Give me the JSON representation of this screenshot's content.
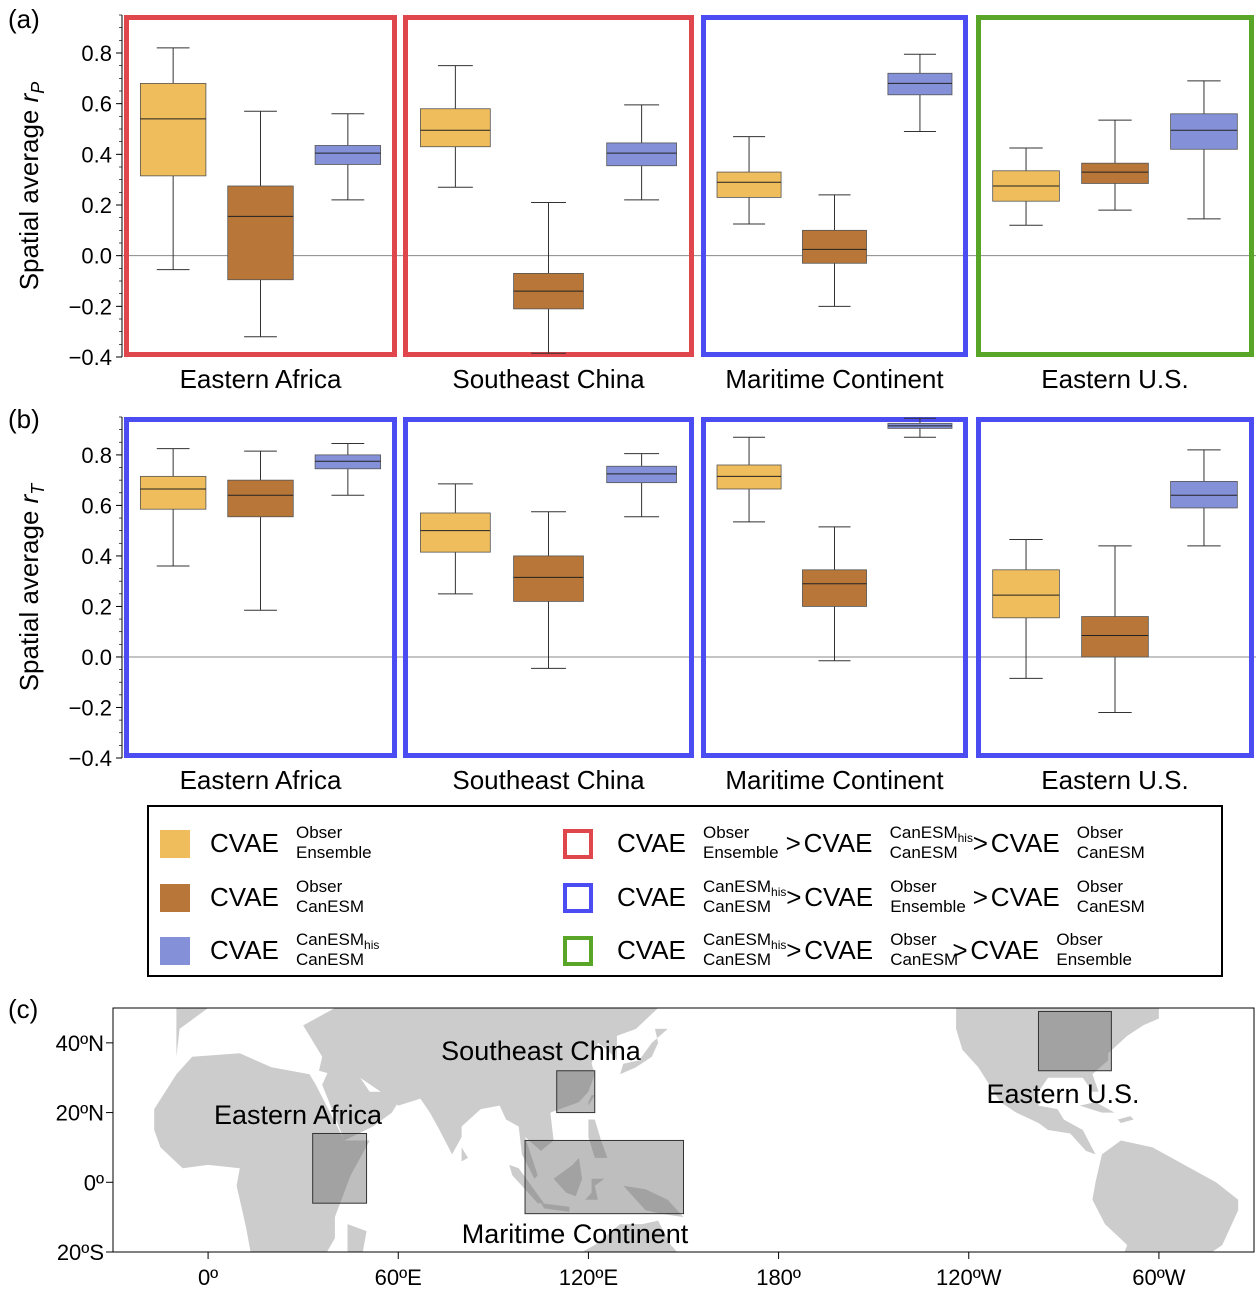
{
  "colors": {
    "ensemble": "#efbd5b",
    "canesm": "#b87738",
    "canesm_his": "#8491d8",
    "order_red": "#e0474c",
    "order_blue": "#4b4cf2",
    "order_green": "#58a528",
    "land": "#cccccc",
    "box_region": "#8a8a8a"
  },
  "legend": {
    "series": [
      {
        "main": "CVAE",
        "sup": "Obser",
        "sub": "Ensemble",
        "color_key": "ensemble"
      },
      {
        "main": "CVAE",
        "sup": "Obser",
        "sub": "CanESM",
        "color_key": "canesm"
      },
      {
        "main": "CVAE",
        "sup": "CanESM",
        "sup_sub": "his",
        "sub": "CanESM",
        "color_key": "canesm_his"
      }
    ],
    "orders": [
      {
        "color_key": "order_red",
        "terms": [
          {
            "main": "CVAE",
            "sup": "Obser",
            "sub": "Ensemble"
          },
          {
            "main": "CVAE",
            "sup": "CanESM",
            "sup_sub": "his",
            "sub": "CanESM"
          },
          {
            "main": "CVAE",
            "sup": "Obser",
            "sub": "CanESM"
          }
        ]
      },
      {
        "color_key": "order_blue",
        "terms": [
          {
            "main": "CVAE",
            "sup": "CanESM",
            "sup_sub": "his",
            "sub": "CanESM"
          },
          {
            "main": "CVAE",
            "sup": "Obser",
            "sub": "Ensemble"
          },
          {
            "main": "CVAE",
            "sup": "Obser",
            "sub": "CanESM"
          }
        ]
      },
      {
        "color_key": "order_green",
        "terms": [
          {
            "main": "CVAE",
            "sup": "CanESM",
            "sup_sub": "his",
            "sub": "CanESM"
          },
          {
            "main": "CVAE",
            "sup": "Obser",
            "sub": "CanESM"
          },
          {
            "main": "CVAE",
            "sup": "Obser",
            "sub": "Ensemble"
          }
        ]
      }
    ],
    "gt": ">"
  },
  "chart_data": [
    {
      "type": "box",
      "panel": "(a)",
      "ylabel": "Spatial average",
      "ylabel_var": "r",
      "ylabel_sub": "P",
      "ylim": [
        -0.4,
        0.95
      ],
      "yticks": [
        -0.4,
        -0.2,
        0.0,
        0.2,
        0.4,
        0.6,
        0.8
      ],
      "ytick_labels": [
        "−0.4",
        "−0.2",
        "0.0",
        "0.2",
        "0.4",
        "0.6",
        "0.8"
      ],
      "zero_line": true,
      "regions": [
        {
          "name": "Eastern Africa",
          "order": "order_red",
          "boxes": [
            {
              "series": "ensemble",
              "min": -0.055,
              "q1": 0.315,
              "median": 0.54,
              "q3": 0.68,
              "max": 0.82
            },
            {
              "series": "canesm",
              "min": -0.32,
              "q1": -0.095,
              "median": 0.155,
              "q3": 0.275,
              "max": 0.57
            },
            {
              "series": "canesm_his",
              "min": 0.22,
              "q1": 0.36,
              "median": 0.405,
              "q3": 0.435,
              "max": 0.56
            }
          ]
        },
        {
          "name": "Southeast China",
          "order": "order_red",
          "boxes": [
            {
              "series": "ensemble",
              "min": 0.27,
              "q1": 0.43,
              "median": 0.495,
              "q3": 0.58,
              "max": 0.75
            },
            {
              "series": "canesm",
              "min": -0.385,
              "q1": -0.21,
              "median": -0.14,
              "q3": -0.07,
              "max": 0.21
            },
            {
              "series": "canesm_his",
              "min": 0.22,
              "q1": 0.355,
              "median": 0.405,
              "q3": 0.445,
              "max": 0.595
            }
          ]
        },
        {
          "name": "Maritime Continent",
          "order": "order_blue",
          "boxes": [
            {
              "series": "ensemble",
              "min": 0.125,
              "q1": 0.23,
              "median": 0.29,
              "q3": 0.33,
              "max": 0.47
            },
            {
              "series": "canesm",
              "min": -0.2,
              "q1": -0.03,
              "median": 0.025,
              "q3": 0.1,
              "max": 0.24
            },
            {
              "series": "canesm_his",
              "min": 0.49,
              "q1": 0.635,
              "median": 0.68,
              "q3": 0.72,
              "max": 0.795
            }
          ]
        },
        {
          "name": "Eastern U.S.",
          "order": "order_green",
          "boxes": [
            {
              "series": "ensemble",
              "min": 0.12,
              "q1": 0.215,
              "median": 0.275,
              "q3": 0.335,
              "max": 0.425
            },
            {
              "series": "canesm",
              "min": 0.18,
              "q1": 0.285,
              "median": 0.33,
              "q3": 0.365,
              "max": 0.535
            },
            {
              "series": "canesm_his",
              "min": 0.145,
              "q1": 0.42,
              "median": 0.495,
              "q3": 0.56,
              "max": 0.69
            }
          ]
        }
      ]
    },
    {
      "type": "box",
      "panel": "(b)",
      "ylabel": "Spatial average",
      "ylabel_var": "r",
      "ylabel_sub": "T",
      "ylim": [
        -0.4,
        0.95
      ],
      "yticks": [
        -0.4,
        -0.2,
        0.0,
        0.2,
        0.4,
        0.6,
        0.8
      ],
      "ytick_labels": [
        "−0.4",
        "−0.2",
        "0.0",
        "0.2",
        "0.4",
        "0.6",
        "0.8"
      ],
      "zero_line": true,
      "regions": [
        {
          "name": "Eastern Africa",
          "order": "order_blue",
          "boxes": [
            {
              "series": "ensemble",
              "min": 0.36,
              "q1": 0.585,
              "median": 0.665,
              "q3": 0.715,
              "max": 0.825
            },
            {
              "series": "canesm",
              "min": 0.185,
              "q1": 0.555,
              "median": 0.64,
              "q3": 0.7,
              "max": 0.815
            },
            {
              "series": "canesm_his",
              "min": 0.64,
              "q1": 0.745,
              "median": 0.775,
              "q3": 0.8,
              "max": 0.845
            }
          ]
        },
        {
          "name": "Southeast China",
          "order": "order_blue",
          "boxes": [
            {
              "series": "ensemble",
              "min": 0.25,
              "q1": 0.415,
              "median": 0.5,
              "q3": 0.57,
              "max": 0.685
            },
            {
              "series": "canesm",
              "min": -0.045,
              "q1": 0.22,
              "median": 0.315,
              "q3": 0.4,
              "max": 0.575
            },
            {
              "series": "canesm_his",
              "min": 0.555,
              "q1": 0.69,
              "median": 0.725,
              "q3": 0.755,
              "max": 0.805
            }
          ]
        },
        {
          "name": "Maritime Continent",
          "order": "order_blue",
          "boxes": [
            {
              "series": "ensemble",
              "min": 0.535,
              "q1": 0.665,
              "median": 0.715,
              "q3": 0.76,
              "max": 0.87
            },
            {
              "series": "canesm",
              "min": -0.015,
              "q1": 0.2,
              "median": 0.29,
              "q3": 0.345,
              "max": 0.515
            },
            {
              "series": "canesm_his",
              "min": 0.87,
              "q1": 0.905,
              "median": 0.915,
              "q3": 0.925,
              "max": 0.945
            }
          ]
        },
        {
          "name": "Eastern U.S.",
          "order": "order_blue",
          "boxes": [
            {
              "series": "ensemble",
              "min": -0.085,
              "q1": 0.155,
              "median": 0.245,
              "q3": 0.345,
              "max": 0.465
            },
            {
              "series": "canesm",
              "min": -0.22,
              "q1": 0.0,
              "median": 0.085,
              "q3": 0.16,
              "max": 0.44
            },
            {
              "series": "canesm_his",
              "min": 0.44,
              "q1": 0.59,
              "median": 0.64,
              "q3": 0.695,
              "max": 0.82
            }
          ]
        }
      ]
    }
  ],
  "map": {
    "panel": "(c)",
    "xticks": [
      0,
      60,
      120,
      180,
      240,
      300
    ],
    "xtick_labels": [
      "0º",
      "60ºE",
      "120ºE",
      "180º",
      "120ºW",
      "60ºW"
    ],
    "yticks": [
      40,
      20,
      0,
      -20
    ],
    "ytick_labels": [
      "40ºN",
      "20ºN",
      "0º",
      "20ºS"
    ],
    "xlim": [
      -30,
      330
    ],
    "ylim": [
      -20,
      50
    ],
    "regions": [
      {
        "name": "Southeast China",
        "lon": [
          110,
          122
        ],
        "lat": [
          20,
          32
        ]
      },
      {
        "name": "Eastern Africa",
        "lon": [
          33,
          50
        ],
        "lat": [
          -6,
          14
        ]
      },
      {
        "name": "Maritime Continent",
        "lon": [
          100,
          150
        ],
        "lat": [
          -9,
          12
        ]
      },
      {
        "name": "Eastern U.S.",
        "lon": [
          262,
          285
        ],
        "lat": [
          32,
          49
        ]
      }
    ]
  }
}
